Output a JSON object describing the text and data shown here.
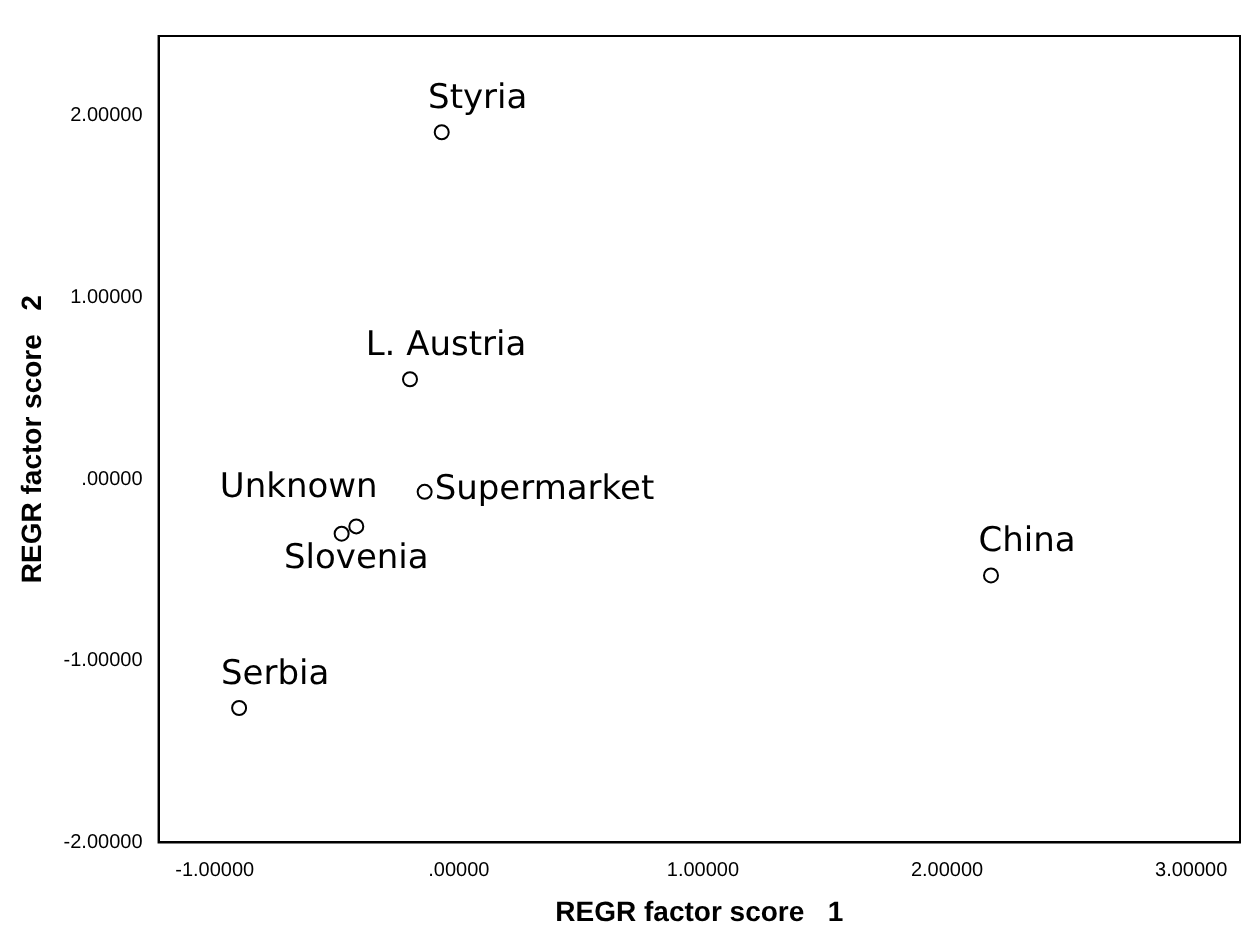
{
  "chart_data": {
    "type": "scatter",
    "xlabel": "REGR factor score   1",
    "ylabel": "REGR factor score   2",
    "grid": false,
    "legend": false,
    "marker": "circle",
    "x": [
      -0.07,
      -0.2,
      -0.14,
      -0.48,
      -0.42,
      2.18,
      -0.9
    ],
    "series": [
      {
        "color": "#000000",
        "values": [
          1.91,
          0.55,
          -0.07,
          -0.3,
          -0.26,
          -0.53,
          -1.26
        ]
      }
    ],
    "xlim": [
      -1.23,
      3.2
    ],
    "ylim": [
      -2,
      2.44
    ],
    "xticks": [
      {
        "value": -1,
        "label": "-1.00000"
      },
      {
        "value": 0,
        "label": ".00000"
      },
      {
        "value": 1,
        "label": "1.00000"
      },
      {
        "value": 2,
        "label": "2.00000"
      },
      {
        "value": 3,
        "label": "3.00000"
      }
    ],
    "yticks": [
      {
        "value": -2,
        "label": "-2.00000"
      },
      {
        "value": -1,
        "label": "-1.00000"
      },
      {
        "value": 0,
        "label": ".00000"
      },
      {
        "value": 1,
        "label": "1.00000"
      },
      {
        "value": 2,
        "label": "2.00000"
      }
    ],
    "annotations": [
      {
        "text": "Styria",
        "x": -0.07,
        "y": 1.91
      },
      {
        "text": "L. Austria",
        "x": -0.2,
        "y": 0.55
      },
      {
        "text": "Supermarket",
        "x": -0.14,
        "y": -0.07
      },
      {
        "text": "Unknown",
        "x": -0.48,
        "y": -0.3
      },
      {
        "text": "Slovenia",
        "x": -0.42,
        "y": -0.26
      },
      {
        "text": "China",
        "x": 2.18,
        "y": -0.53
      },
      {
        "text": "Serbia",
        "x": -0.9,
        "y": -1.26
      }
    ]
  }
}
